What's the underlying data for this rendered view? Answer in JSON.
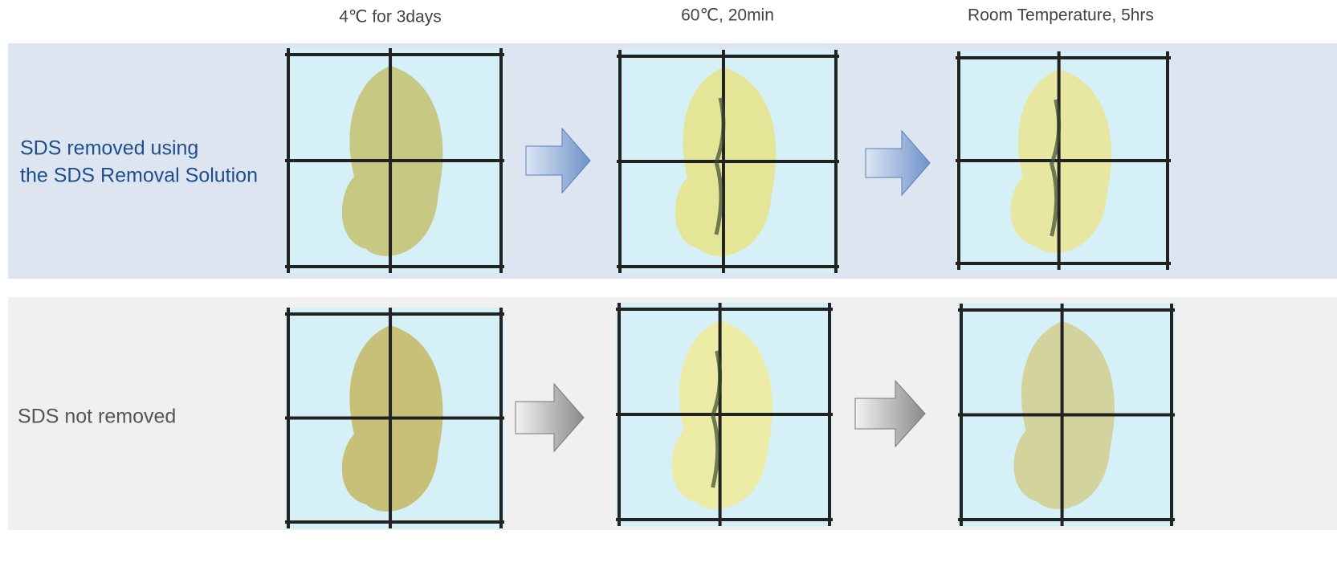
{
  "columns": [
    "4℃ for 3days",
    "60℃, 20min",
    "Room Temperature, 5hrs"
  ],
  "rows": [
    {
      "label": [
        "SDS removed using",
        "the SDS Removal Solution"
      ]
    },
    {
      "label": "SDS not removed"
    }
  ]
}
